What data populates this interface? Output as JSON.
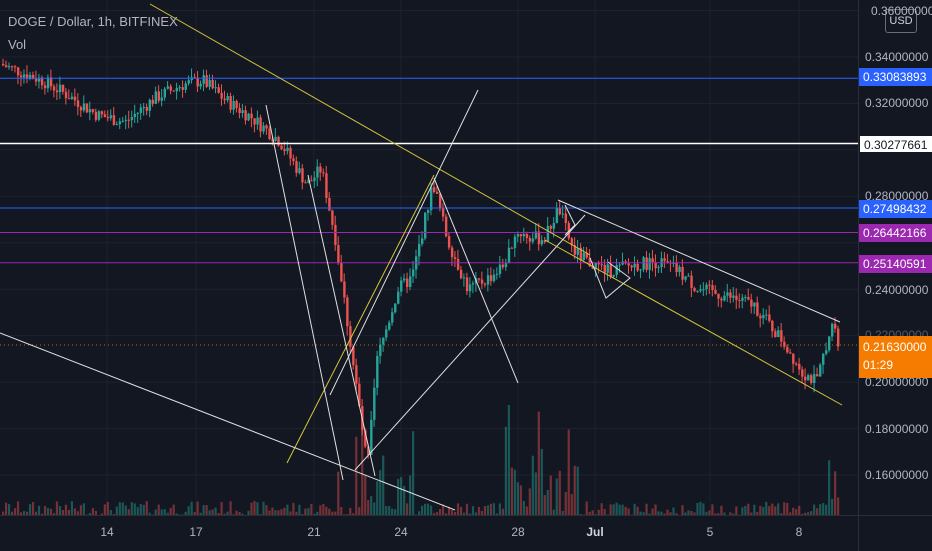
{
  "legend": {
    "title": "DOGE / Dollar, 1h, BITFINEX",
    "indicator": "Vol"
  },
  "price_axis": {
    "currency": "USD",
    "ticks": [
      "0.36000000",
      "0.34000000",
      "0.32000000",
      "0.28000000",
      "0.24000000",
      "0.22000000",
      "0.20000000",
      "0.18000000",
      "0.16000000"
    ],
    "badges": [
      {
        "label": "0.33083893",
        "color": "#2962ff"
      },
      {
        "label": "0.30277661",
        "color": "#ffffff"
      },
      {
        "label": "0.27498432",
        "color": "#2962ff"
      },
      {
        "label": "0.26442166",
        "color": "#9c27b0"
      },
      {
        "label": "0.25140591",
        "color": "#9c27b0"
      }
    ],
    "last_price": {
      "label": "0.21630000",
      "countdown": "01:29",
      "color": "#f57c00"
    }
  },
  "time_axis": {
    "labels": [
      "14",
      "17",
      "21",
      "24",
      "28",
      "Jul",
      "5",
      "8"
    ]
  },
  "colors": {
    "up": "#26a69a",
    "down": "#ef5350",
    "trend_yellow": "#d4c53a",
    "line_white": "#d1d4dc"
  },
  "chart_data": {
    "type": "candlestick",
    "symbol": "DOGE / Dollar",
    "interval": "1h",
    "exchange": "BITFINEX",
    "ylim": [
      0.15,
      0.36
    ],
    "x_ticks": [
      "14",
      "17",
      "21",
      "24",
      "28",
      "Jul",
      "5",
      "8"
    ],
    "horizontal_levels": [
      0.33083893,
      0.30277661,
      0.27498432,
      0.26442166,
      0.25140591
    ],
    "last_price": 0.2163,
    "price_path": [
      [
        0,
        0.337
      ],
      [
        3,
        0.33
      ],
      [
        5,
        0.323
      ],
      [
        7,
        0.315
      ],
      [
        9,
        0.312
      ],
      [
        11,
        0.322
      ],
      [
        13,
        0.328
      ],
      [
        14.5,
        0.33
      ],
      [
        16,
        0.322
      ],
      [
        18,
        0.314
      ],
      [
        20,
        0.304
      ],
      [
        22,
        0.285
      ],
      [
        23,
        0.292
      ],
      [
        24,
        0.262
      ],
      [
        25,
        0.22
      ],
      [
        26.3,
        0.163
      ],
      [
        27,
        0.21
      ],
      [
        28.5,
        0.24
      ],
      [
        29.5,
        0.245
      ],
      [
        31,
        0.286
      ],
      [
        32,
        0.262
      ],
      [
        33.5,
        0.24
      ],
      [
        35,
        0.245
      ],
      [
        36,
        0.25
      ],
      [
        37,
        0.265
      ],
      [
        38,
        0.262
      ],
      [
        39,
        0.262
      ],
      [
        40,
        0.275
      ],
      [
        41,
        0.257
      ],
      [
        42,
        0.252
      ],
      [
        43.5,
        0.248
      ],
      [
        45,
        0.25
      ],
      [
        47,
        0.252
      ],
      [
        48.5,
        0.248
      ],
      [
        50,
        0.24
      ],
      [
        52,
        0.237
      ],
      [
        54,
        0.233
      ],
      [
        56,
        0.218
      ],
      [
        57.5,
        0.204
      ],
      [
        58.5,
        0.2
      ],
      [
        59.5,
        0.226
      ],
      [
        60,
        0.2163
      ]
    ]
  }
}
